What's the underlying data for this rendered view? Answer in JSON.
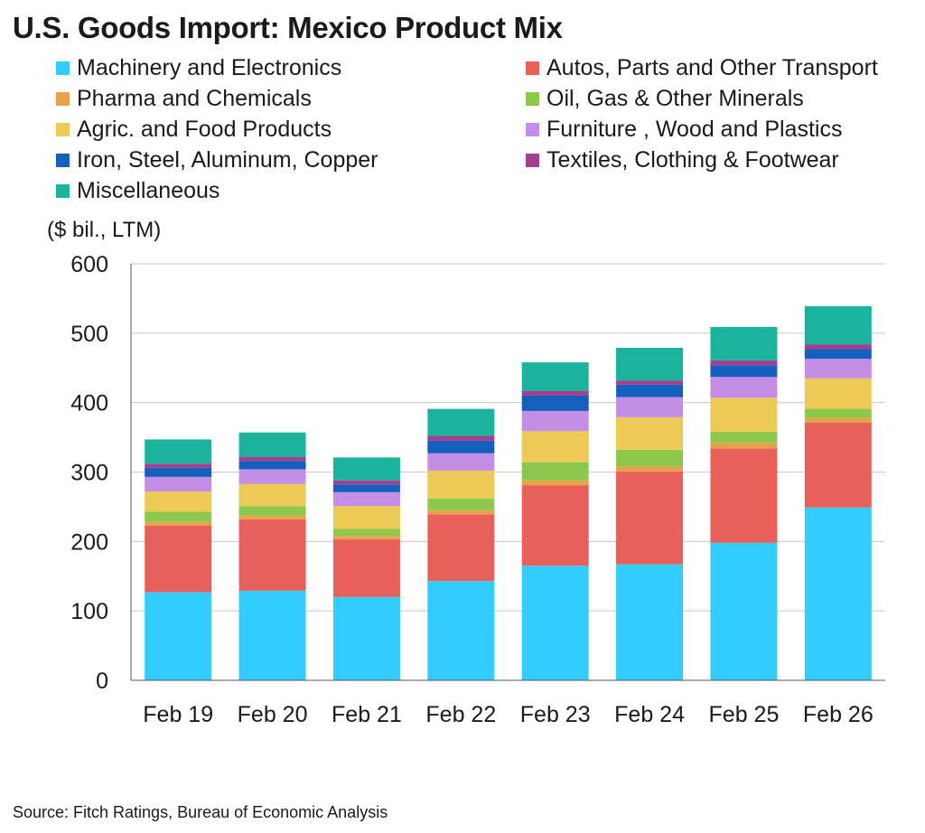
{
  "title": "U.S. Goods Import: Mexico Product Mix",
  "source": "Source: Fitch Ratings, Bureau of Economic Analysis",
  "chart_data": {
    "type": "bar",
    "stacked": true,
    "title": "U.S. Goods Import: Mexico Product Mix",
    "unit_label": "($ bil., LTM)",
    "xlabel": "",
    "ylabel": "",
    "ylim": [
      0,
      600
    ],
    "yticks": [
      0,
      100,
      200,
      300,
      400,
      500,
      600
    ],
    "grid": true,
    "legend_position": "top",
    "categories": [
      "Feb 19",
      "Feb 20",
      "Feb 21",
      "Feb 22",
      "Feb 23",
      "Feb 24",
      "Feb 25",
      "Feb 26"
    ],
    "series": [
      {
        "name": "Machinery and Electronics",
        "color": "#33ccff",
        "values": [
          127,
          129,
          120,
          143,
          165,
          167,
          198,
          249
        ]
      },
      {
        "name": "Autos, Parts and Other Transport",
        "color": "#e8605a",
        "values": [
          96,
          103,
          83,
          96,
          116,
          134,
          136,
          122
        ]
      },
      {
        "name": "Pharma and Chemicals",
        "color": "#e8a04a",
        "values": [
          5,
          5,
          5,
          6,
          7,
          7,
          8,
          7
        ]
      },
      {
        "name": "Oil, Gas & Other Minerals",
        "color": "#8cc84b",
        "values": [
          15,
          14,
          10,
          17,
          26,
          24,
          16,
          13
        ]
      },
      {
        "name": "Agric. and Food Products",
        "color": "#ecca55",
        "values": [
          29,
          32,
          33,
          40,
          45,
          47,
          49,
          44
        ]
      },
      {
        "name": "Furniture , Wood and Plastics",
        "color": "#c48ee6",
        "values": [
          21,
          21,
          20,
          25,
          29,
          29,
          30,
          28
        ]
      },
      {
        "name": "Iron, Steel, Aluminum, Copper",
        "color": "#1560bd",
        "values": [
          13,
          12,
          11,
          18,
          22,
          18,
          17,
          14
        ]
      },
      {
        "name": "Textiles, Clothing & Footwear",
        "color": "#a33f8f",
        "values": [
          6,
          6,
          6,
          7,
          7,
          6,
          7,
          7
        ]
      },
      {
        "name": "Miscellaneous",
        "color": "#1ab39c",
        "values": [
          35,
          35,
          33,
          39,
          41,
          47,
          48,
          55
        ]
      }
    ]
  }
}
